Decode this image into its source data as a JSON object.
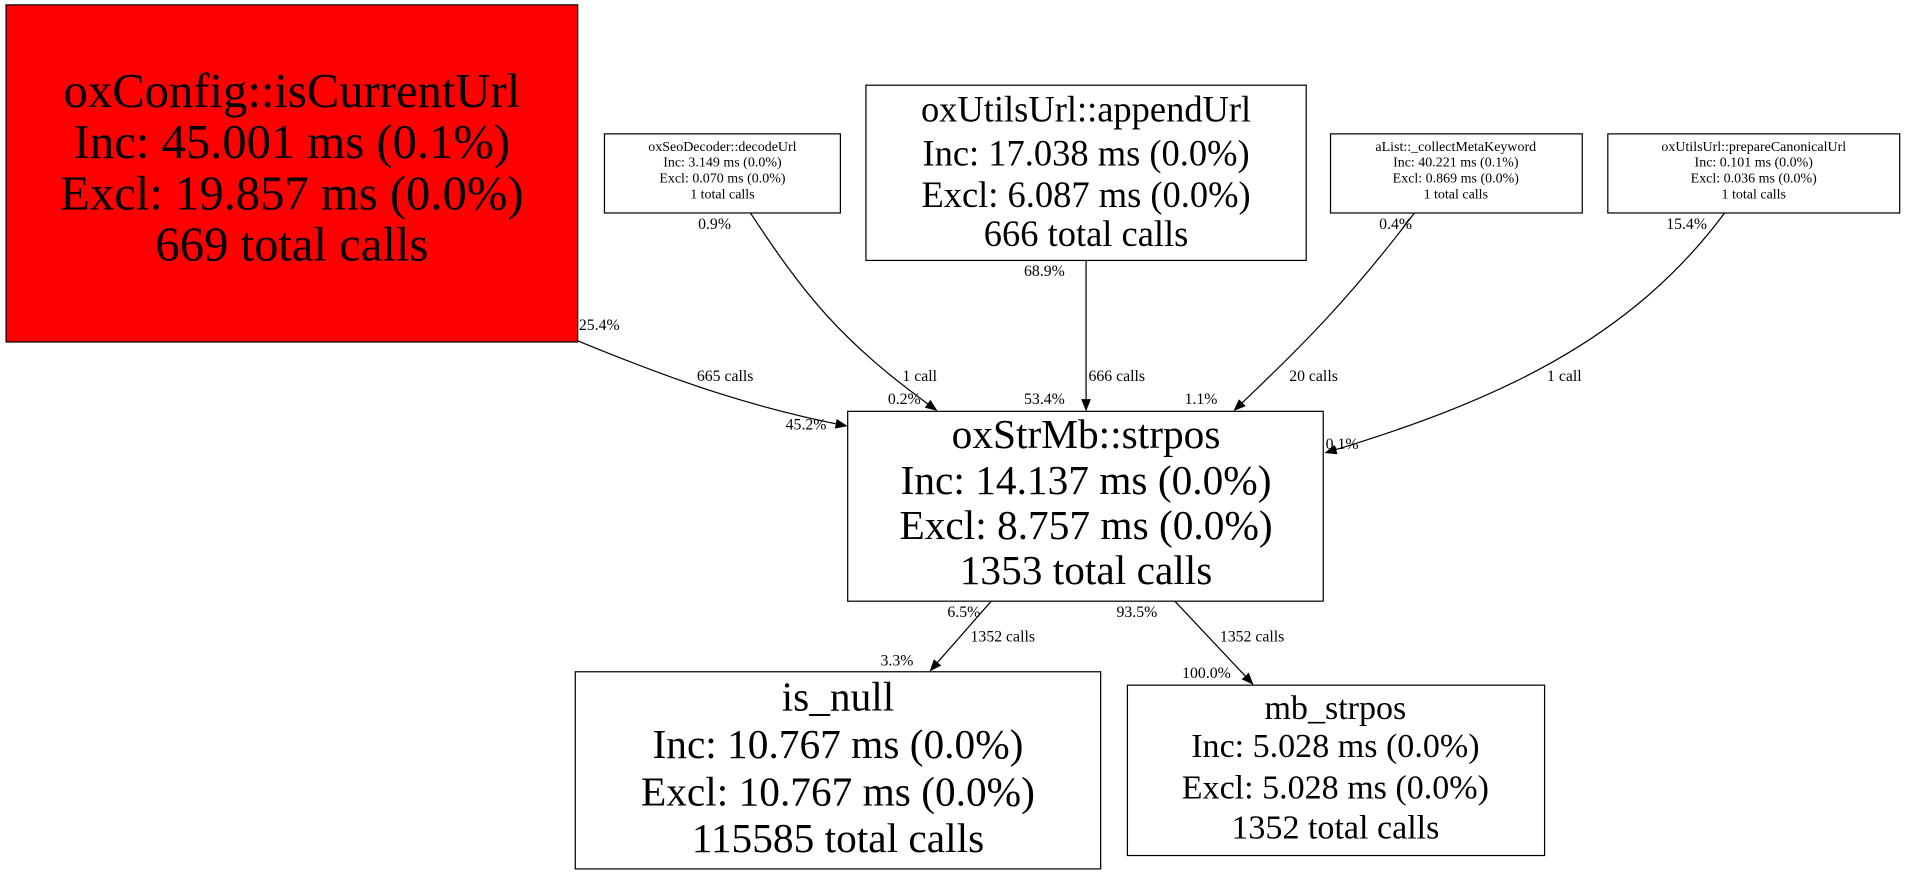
{
  "nodes": {
    "isCurrentUrl": {
      "lines": [
        "oxConfig::isCurrentUrl",
        "Inc: 45.001 ms (0.1%)",
        "Excl: 19.857 ms (0.0%)",
        "669 total calls"
      ],
      "fill": "#ff0000"
    },
    "decodeUrl": {
      "lines": [
        "oxSeoDecoder::decodeUrl",
        "Inc: 3.149 ms (0.0%)",
        "Excl: 0.070 ms (0.0%)",
        "1 total calls"
      ]
    },
    "appendUrl": {
      "lines": [
        "oxUtilsUrl::appendUrl",
        "Inc: 17.038 ms (0.0%)",
        "Excl: 6.087 ms (0.0%)",
        "666 total calls"
      ]
    },
    "collectMetaKeyword": {
      "lines": [
        "aList::_collectMetaKeyword",
        "Inc: 40.221 ms (0.1%)",
        "Excl: 0.869 ms (0.0%)",
        "1 total calls"
      ]
    },
    "prepareCanonicalUrl": {
      "lines": [
        "oxUtilsUrl::prepareCanonicalUrl",
        "Inc: 0.101 ms (0.0%)",
        "Excl: 0.036 ms (0.0%)",
        "1 total calls"
      ]
    },
    "strpos": {
      "lines": [
        "oxStrMb::strpos",
        "Inc: 14.137 ms (0.0%)",
        "Excl: 8.757 ms (0.0%)",
        "1353 total calls"
      ]
    },
    "is_null": {
      "lines": [
        "is_null",
        "Inc: 10.767 ms (0.0%)",
        "Excl: 10.767 ms (0.0%)",
        "115585 total calls"
      ]
    },
    "mb_strpos": {
      "lines": [
        "mb_strpos",
        "Inc: 5.028 ms (0.0%)",
        "Excl: 5.028 ms (0.0%)",
        "1352 total calls"
      ]
    }
  },
  "edges": [
    {
      "from": "oxConfig::isCurrentUrl",
      "to": "oxStrMb::strpos",
      "tail": "25.4%",
      "label": "665 calls",
      "head": "45.2%"
    },
    {
      "from": "oxSeoDecoder::decodeUrl",
      "to": "oxStrMb::strpos",
      "tail": "0.9%",
      "label": "1 call",
      "head": "0.2%"
    },
    {
      "from": "oxUtilsUrl::appendUrl",
      "to": "oxStrMb::strpos",
      "tail": "68.9%",
      "label": "666 calls",
      "head": "53.4%"
    },
    {
      "from": "aList::_collectMetaKeyword",
      "to": "oxStrMb::strpos",
      "tail": "0.4%",
      "label": "20 calls",
      "head": "1.1%"
    },
    {
      "from": "oxUtilsUrl::prepareCanonicalUrl",
      "to": "oxStrMb::strpos",
      "tail": "15.4%",
      "label": "1 call",
      "head": "0.1%"
    },
    {
      "from": "oxStrMb::strpos",
      "to": "is_null",
      "tail": "6.5%",
      "label": "1352 calls",
      "head": "3.3%"
    },
    {
      "from": "oxStrMb::strpos",
      "to": "mb_strpos",
      "tail": "93.5%",
      "label": "1352 calls",
      "head": "100.0%"
    }
  ]
}
